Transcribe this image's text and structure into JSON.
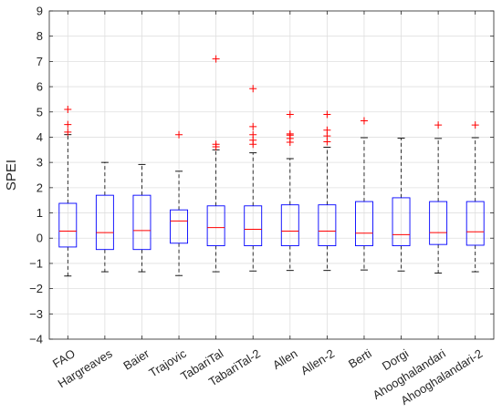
{
  "chart_data": {
    "type": "box",
    "title": "",
    "xlabel": "",
    "ylabel": "SPEI",
    "ylim": [
      -4,
      9
    ],
    "yticks": [
      -4,
      -3,
      -2,
      -1,
      0,
      1,
      2,
      3,
      4,
      5,
      6,
      7,
      8,
      9
    ],
    "grid": true,
    "categories": [
      "FAO",
      "Hargreaves",
      "Baier",
      "Trajovic",
      "TabariTal",
      "TabariTal-2",
      "Allen",
      "Allen-2",
      "Berti",
      "Dorgi",
      "Ahooghalandari",
      "Ahooghalandari-2"
    ],
    "boxes": [
      {
        "name": "FAO",
        "whisker_low": -1.5,
        "q1": -0.35,
        "median": 0.28,
        "q3": 1.38,
        "whisker_high": 4.1,
        "outliers": [
          4.2,
          4.5,
          5.1
        ]
      },
      {
        "name": "Hargreaves",
        "whisker_low": -1.33,
        "q1": -0.45,
        "median": 0.22,
        "q3": 1.7,
        "whisker_high": 3.0,
        "outliers": []
      },
      {
        "name": "Baier",
        "whisker_low": -1.33,
        "q1": -0.45,
        "median": 0.3,
        "q3": 1.7,
        "whisker_high": 2.92,
        "outliers": []
      },
      {
        "name": "Trajovic",
        "whisker_low": -1.48,
        "q1": -0.2,
        "median": 0.68,
        "q3": 1.12,
        "whisker_high": 2.65,
        "outliers": [
          4.1
        ]
      },
      {
        "name": "TabariTal",
        "whisker_low": -1.33,
        "q1": -0.3,
        "median": 0.42,
        "q3": 1.28,
        "whisker_high": 3.5,
        "outliers": [
          3.62,
          3.72,
          7.1
        ]
      },
      {
        "name": "TabariTal-2",
        "whisker_low": -1.3,
        "q1": -0.3,
        "median": 0.35,
        "q3": 1.28,
        "whisker_high": 3.38,
        "outliers": [
          3.72,
          3.88,
          4.1,
          4.42,
          5.92
        ]
      },
      {
        "name": "Allen",
        "whisker_low": -1.28,
        "q1": -0.3,
        "median": 0.28,
        "q3": 1.32,
        "whisker_high": 3.15,
        "outliers": [
          3.8,
          3.95,
          4.08,
          4.13,
          4.9
        ]
      },
      {
        "name": "Allen-2",
        "whisker_low": -1.28,
        "q1": -0.3,
        "median": 0.28,
        "q3": 1.32,
        "whisker_high": 3.6,
        "outliers": [
          3.82,
          4.05,
          4.28,
          4.9
        ]
      },
      {
        "name": "Berti",
        "whisker_low": -1.26,
        "q1": -0.3,
        "median": 0.2,
        "q3": 1.45,
        "whisker_high": 3.98,
        "outliers": [
          4.65
        ]
      },
      {
        "name": "Dorgi",
        "whisker_low": -1.3,
        "q1": -0.3,
        "median": 0.14,
        "q3": 1.6,
        "whisker_high": 3.96,
        "outliers": []
      },
      {
        "name": "Ahooghalandari",
        "whisker_low": -1.38,
        "q1": -0.25,
        "median": 0.22,
        "q3": 1.45,
        "whisker_high": 3.95,
        "outliers": [
          4.48
        ]
      },
      {
        "name": "Ahooghalandari-2",
        "whisker_low": -1.33,
        "q1": -0.28,
        "median": 0.25,
        "q3": 1.45,
        "whisker_high": 3.98,
        "outliers": [
          4.48
        ]
      }
    ],
    "colors": {
      "box": "#0000ff",
      "median": "#ff0000",
      "whisker": "#000000",
      "outlier": "#ff0000",
      "grid": "#dfdfdf",
      "axis": "#262626"
    }
  }
}
